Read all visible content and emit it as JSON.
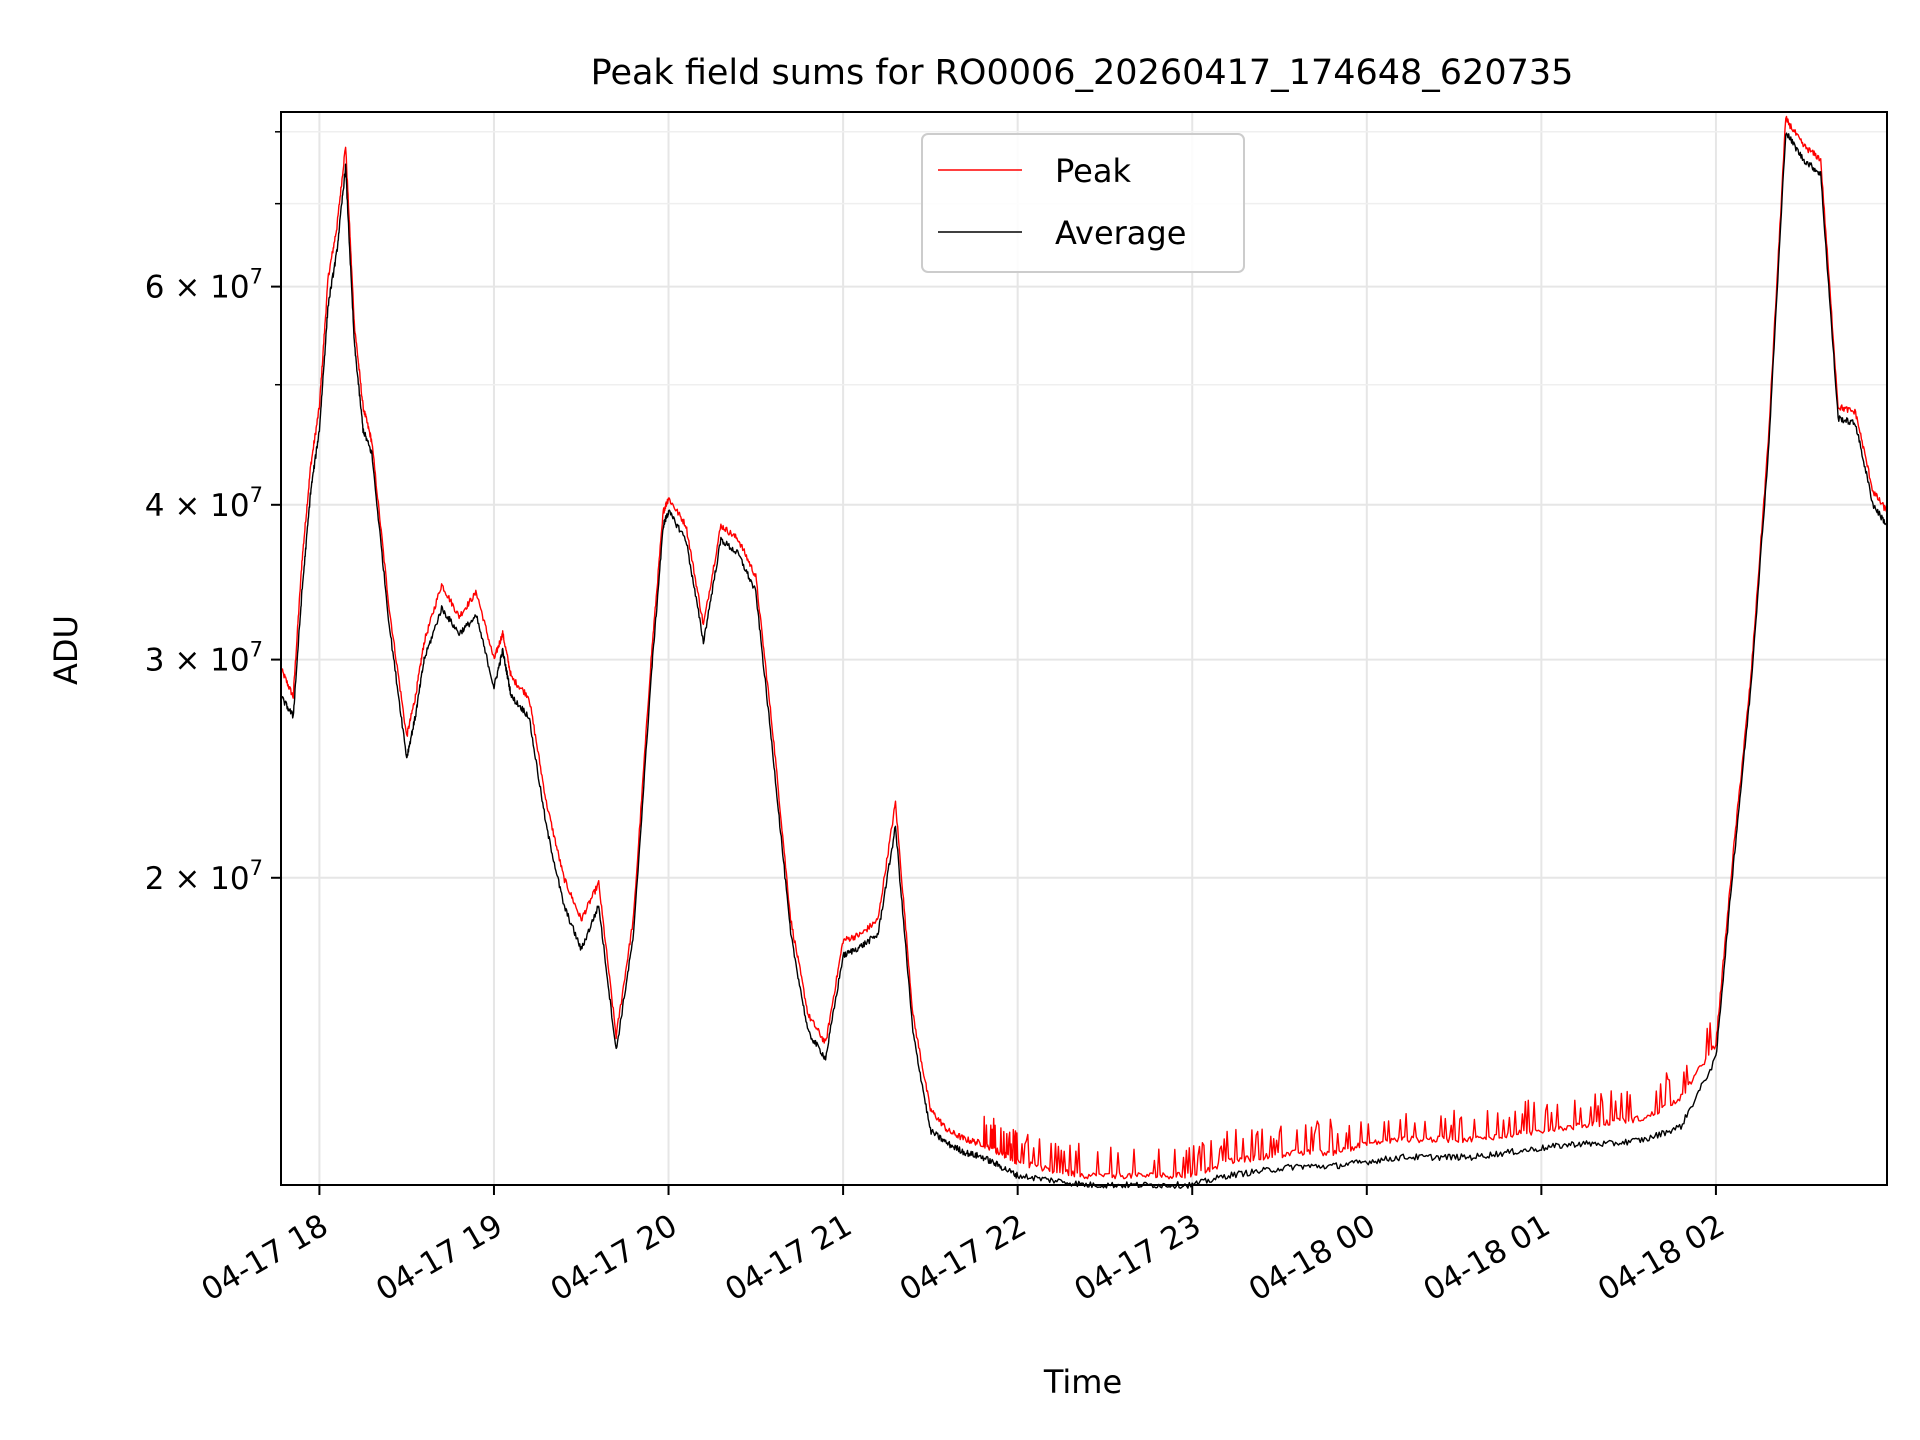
{
  "chart_data": {
    "type": "line",
    "title": "Peak field sums for RO0006_20260417_174648_620735",
    "xlabel": "Time",
    "ylabel": "ADU",
    "yscale": "log",
    "ylim": [
      11300000,
      83000000
    ],
    "xlim_hours": [
      17.78,
      26.98
    ],
    "grid": true,
    "legend_position": "upper-center",
    "x_ticks": [
      {
        "h": 18,
        "label": "04-17 18"
      },
      {
        "h": 19,
        "label": "04-17 19"
      },
      {
        "h": 20,
        "label": "04-17 20"
      },
      {
        "h": 21,
        "label": "04-17 21"
      },
      {
        "h": 22,
        "label": "04-17 22"
      },
      {
        "h": 23,
        "label": "04-17 23"
      },
      {
        "h": 24,
        "label": "04-18 00"
      },
      {
        "h": 25,
        "label": "04-18 01"
      },
      {
        "h": 26,
        "label": "04-18 02"
      }
    ],
    "y_major_ticks": [
      {
        "v": 20000000,
        "mant": "2",
        "exp": "7"
      },
      {
        "v": 30000000,
        "mant": "3",
        "exp": "7"
      },
      {
        "v": 40000000,
        "mant": "4",
        "exp": "7"
      },
      {
        "v": 60000000,
        "mant": "6",
        "exp": "7"
      }
    ],
    "y_times_sign": "×",
    "y_base": "10",
    "y_minor_ticks": [
      50000000,
      70000000,
      80000000
    ],
    "series": [
      {
        "name": "Peak",
        "color": "#ff0000",
        "x_hours": [
          17.78,
          17.85,
          17.9,
          17.95,
          18.0,
          18.05,
          18.1,
          18.15,
          18.2,
          18.25,
          18.3,
          18.4,
          18.5,
          18.55,
          18.6,
          18.7,
          18.8,
          18.9,
          19.0,
          19.05,
          19.1,
          19.2,
          19.3,
          19.4,
          19.5,
          19.6,
          19.7,
          19.8,
          19.9,
          19.97,
          20.0,
          20.1,
          20.2,
          20.3,
          20.4,
          20.5,
          20.6,
          20.7,
          20.8,
          20.9,
          21.0,
          21.1,
          21.2,
          21.3,
          21.4,
          21.5,
          21.6,
          21.7,
          21.8,
          21.9,
          22.0,
          22.2,
          22.4,
          22.6,
          22.8,
          23.0,
          23.2,
          23.4,
          23.6,
          23.8,
          24.0,
          24.2,
          24.4,
          24.6,
          24.8,
          25.0,
          25.2,
          25.4,
          25.6,
          25.8,
          26.0,
          26.1,
          26.2,
          26.3,
          26.4,
          26.5,
          26.6,
          26.7,
          26.8,
          26.9,
          26.98
        ],
        "values": [
          29500000,
          28000000,
          36000000,
          43000000,
          48000000,
          61000000,
          67000000,
          78000000,
          56000000,
          48000000,
          45000000,
          33000000,
          26000000,
          28000000,
          31000000,
          34500000,
          32500000,
          34000000,
          30000000,
          31500000,
          29000000,
          28000000,
          23000000,
          20000000,
          18500000,
          19800000,
          14900000,
          18600000,
          30000000,
          39500000,
          40500000,
          38500000,
          32000000,
          38500000,
          37500000,
          35000000,
          26000000,
          18500000,
          15500000,
          14700000,
          17800000,
          18000000,
          18500000,
          23000000,
          15500000,
          13000000,
          12500000,
          12300000,
          12200000,
          12000000,
          11800000,
          11600000,
          11500000,
          11500000,
          11500000,
          11500000,
          11800000,
          11900000,
          12000000,
          12000000,
          12200000,
          12300000,
          12300000,
          12300000,
          12400000,
          12500000,
          12600000,
          12700000,
          12800000,
          13300000,
          14700000,
          21000000,
          29000000,
          45000000,
          82000000,
          78000000,
          76000000,
          48000000,
          47500000,
          41000000,
          39500000
        ]
      },
      {
        "name": "Average",
        "color": "#000000",
        "x_hours": [
          17.78,
          17.85,
          17.9,
          17.95,
          18.0,
          18.05,
          18.1,
          18.15,
          18.2,
          18.25,
          18.3,
          18.4,
          18.5,
          18.55,
          18.6,
          18.7,
          18.8,
          18.9,
          19.0,
          19.05,
          19.1,
          19.2,
          19.3,
          19.4,
          19.5,
          19.6,
          19.7,
          19.8,
          19.9,
          19.97,
          20.0,
          20.1,
          20.2,
          20.3,
          20.4,
          20.5,
          20.6,
          20.7,
          20.8,
          20.9,
          21.0,
          21.1,
          21.2,
          21.3,
          21.4,
          21.5,
          21.6,
          21.7,
          21.8,
          21.9,
          22.0,
          22.2,
          22.4,
          22.6,
          22.8,
          23.0,
          23.2,
          23.4,
          23.6,
          23.8,
          24.0,
          24.2,
          24.4,
          24.6,
          24.8,
          25.0,
          25.2,
          25.4,
          25.6,
          25.8,
          26.0,
          26.1,
          26.2,
          26.3,
          26.4,
          26.5,
          26.6,
          26.7,
          26.8,
          26.9,
          26.98
        ],
        "values": [
          28000000,
          27000000,
          34000000,
          41000000,
          46000000,
          58000000,
          64000000,
          75000000,
          54000000,
          46000000,
          44000000,
          32000000,
          25000000,
          27000000,
          30000000,
          33000000,
          31500000,
          32500000,
          28500000,
          30500000,
          28000000,
          27000000,
          22000000,
          19000000,
          17500000,
          19000000,
          14500000,
          18000000,
          29000000,
          38500000,
          39500000,
          37500000,
          31000000,
          37500000,
          36500000,
          34000000,
          25000000,
          18000000,
          15000000,
          14300000,
          17300000,
          17600000,
          18000000,
          22000000,
          15000000,
          12500000,
          12200000,
          12000000,
          11900000,
          11700000,
          11500000,
          11400000,
          11300000,
          11300000,
          11300000,
          11300000,
          11500000,
          11600000,
          11700000,
          11700000,
          11800000,
          11900000,
          11900000,
          11900000,
          12000000,
          12100000,
          12200000,
          12200000,
          12300000,
          12600000,
          14300000,
          20500000,
          28500000,
          44000000,
          80000000,
          76000000,
          74000000,
          47000000,
          46500000,
          40000000,
          38500000
        ]
      }
    ]
  }
}
